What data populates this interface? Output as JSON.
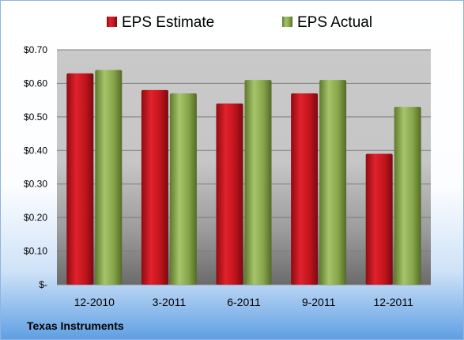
{
  "chart_data": {
    "type": "bar",
    "categories": [
      "12-2010",
      "3-2011",
      "6-2011",
      "9-2011",
      "12-2011"
    ],
    "series": [
      {
        "name": "EPS Estimate",
        "values": [
          0.63,
          0.58,
          0.54,
          0.57,
          0.39
        ],
        "color": "#c0141d"
      },
      {
        "name": "EPS Actual",
        "values": [
          0.64,
          0.57,
          0.61,
          0.61,
          0.53
        ],
        "color": "#8aa84a"
      }
    ],
    "ylim": [
      0,
      0.7
    ],
    "yticks": [
      0,
      0.1,
      0.2,
      0.3,
      0.4,
      0.5,
      0.6,
      0.7
    ],
    "ytick_labels": [
      "$-",
      "$0.10",
      "$0.20",
      "$0.30",
      "$0.40",
      "$0.50",
      "$0.60",
      "$0.70"
    ],
    "grid": true,
    "legend_position": "top"
  },
  "footer": {
    "company": "Texas Instruments"
  }
}
